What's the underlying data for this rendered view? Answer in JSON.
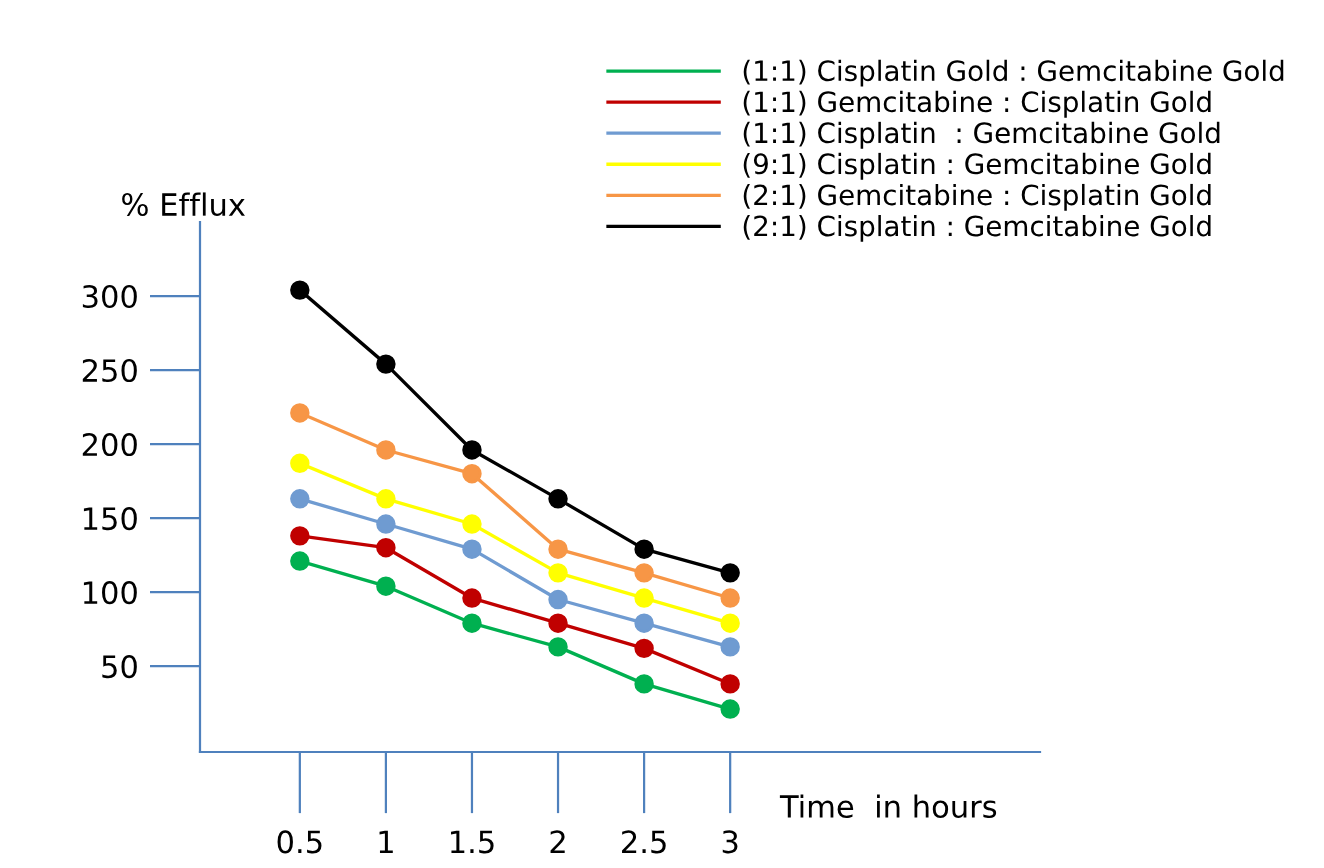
{
  "chart_data": {
    "type": "line",
    "xlabel": "Time  in hours",
    "ylabel": "% Efflux",
    "x": [
      0.5,
      1,
      1.5,
      2,
      2.5,
      3
    ],
    "series": [
      {
        "name": "(1:1) Cisplatin Gold : Gemcitabine Gold",
        "color": "#00b050",
        "values": [
          121,
          104,
          79,
          63,
          38,
          21
        ]
      },
      {
        "name": "(1:1) Gemcitabine : Cisplatin Gold",
        "color": "#c00000",
        "values": [
          138,
          130,
          96,
          79,
          62,
          38
        ]
      },
      {
        "name": "(1:1) Cisplatin  : Gemcitabine Gold",
        "color": "#6f9bd1",
        "values": [
          163,
          146,
          129,
          95,
          79,
          63
        ]
      },
      {
        "name": "(9:1) Cisplatin : Gemcitabine Gold",
        "color": "#ffff00",
        "values": [
          187,
          163,
          146,
          113,
          96,
          79
        ]
      },
      {
        "name": "(2:1) Gemcitabine : Cisplatin Gold",
        "color": "#f79646",
        "values": [
          221,
          196,
          180,
          129,
          113,
          96
        ]
      },
      {
        "name": "(2:1) Cisplatin : Gemcitabine Gold",
        "color": "#000000",
        "values": [
          304,
          254,
          196,
          163,
          129,
          113
        ]
      }
    ],
    "xlim": [
      -0.08,
      4.8
    ],
    "ylim": [
      -8,
      350
    ],
    "xticks": [
      0.5,
      1,
      1.5,
      2,
      2.5,
      3
    ],
    "yticks": [
      50,
      100,
      150,
      200,
      250,
      300
    ],
    "grid": false,
    "legend": "top right",
    "marker": "circle",
    "line_style": "solid"
  }
}
